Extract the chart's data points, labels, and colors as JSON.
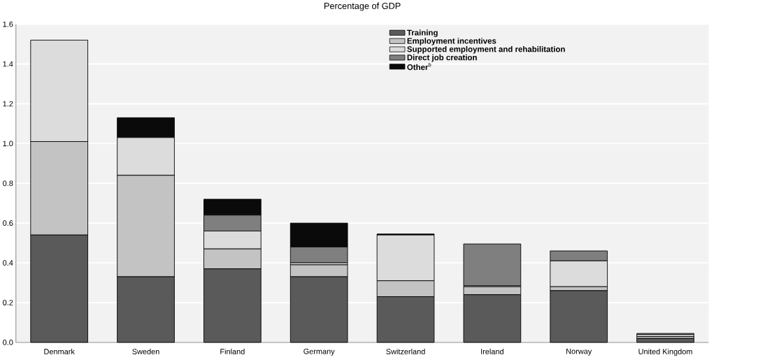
{
  "chart_data": {
    "type": "bar",
    "stacked": true,
    "title": "Percentage of GDP",
    "categories": [
      "Denmark",
      "Sweden",
      "Finland",
      "Germany",
      "Switzerland",
      "Ireland",
      "Norway",
      "United Kingdom"
    ],
    "series": [
      {
        "name": "**Training**",
        "color": "#5a5a5a",
        "values": [
          0.54,
          0.33,
          0.37,
          0.33,
          0.23,
          0.24,
          0.26,
          0.02
        ]
      },
      {
        "name": "**Employment incentives**",
        "color": "#c3c3c3",
        "values": [
          0.47,
          0.51,
          0.1,
          0.06,
          0.08,
          0.04,
          0.02,
          0.01
        ]
      },
      {
        "name": "**Supported employment and rehabilitation**",
        "color": "#dcdcdc",
        "values": [
          0.51,
          0.19,
          0.09,
          0.01,
          0.23,
          0.005,
          0.13,
          0.01
        ]
      },
      {
        "name": "**Direct job creation**",
        "color": "#7f7f7f",
        "values": [
          0,
          0,
          0.08,
          0.08,
          0,
          0.21,
          0.05,
          0.005
        ]
      },
      {
        "name": "**Other**$^{b}$",
        "color": "#0a0a0a",
        "values": [
          0,
          0.1,
          0.08,
          0.12,
          0.005,
          0,
          0,
          0
        ]
      }
    ],
    "ylim": [
      0,
      1.6
    ],
    "yticks": [
      {
        "value": 0,
        "label": "0.0"
      },
      {
        "value": 0.2,
        "label": "0.2"
      },
      {
        "value": 0.4,
        "label": "0.4"
      },
      {
        "value": 0.6,
        "label": "0.6"
      },
      {
        "value": 0.8,
        "label": "0.8"
      },
      {
        "value": 1.0,
        "label": "1.0"
      },
      {
        "value": 1.2,
        "label": "1.2"
      },
      {
        "value": 1.4,
        "label": "1.4"
      },
      {
        "value": 1.6,
        "label": "1.6"
      }
    ],
    "grid": "y",
    "legend": "top right"
  }
}
